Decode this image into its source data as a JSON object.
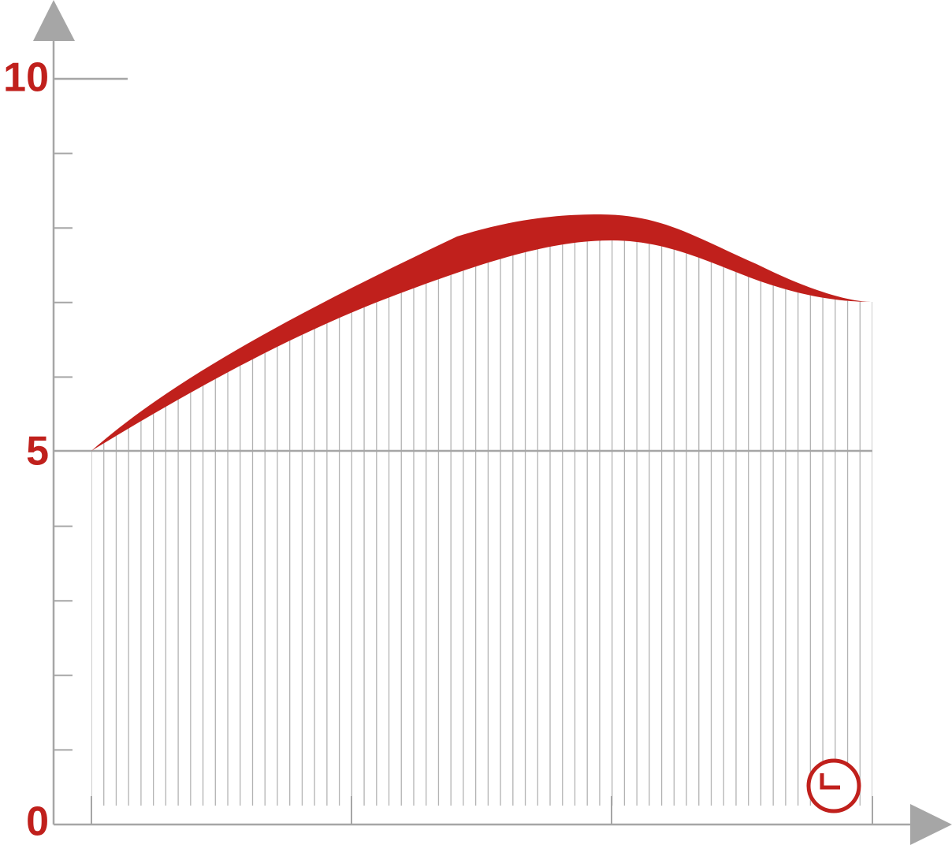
{
  "axis": {
    "labels": [
      "10",
      "5",
      "0"
    ]
  }
}
